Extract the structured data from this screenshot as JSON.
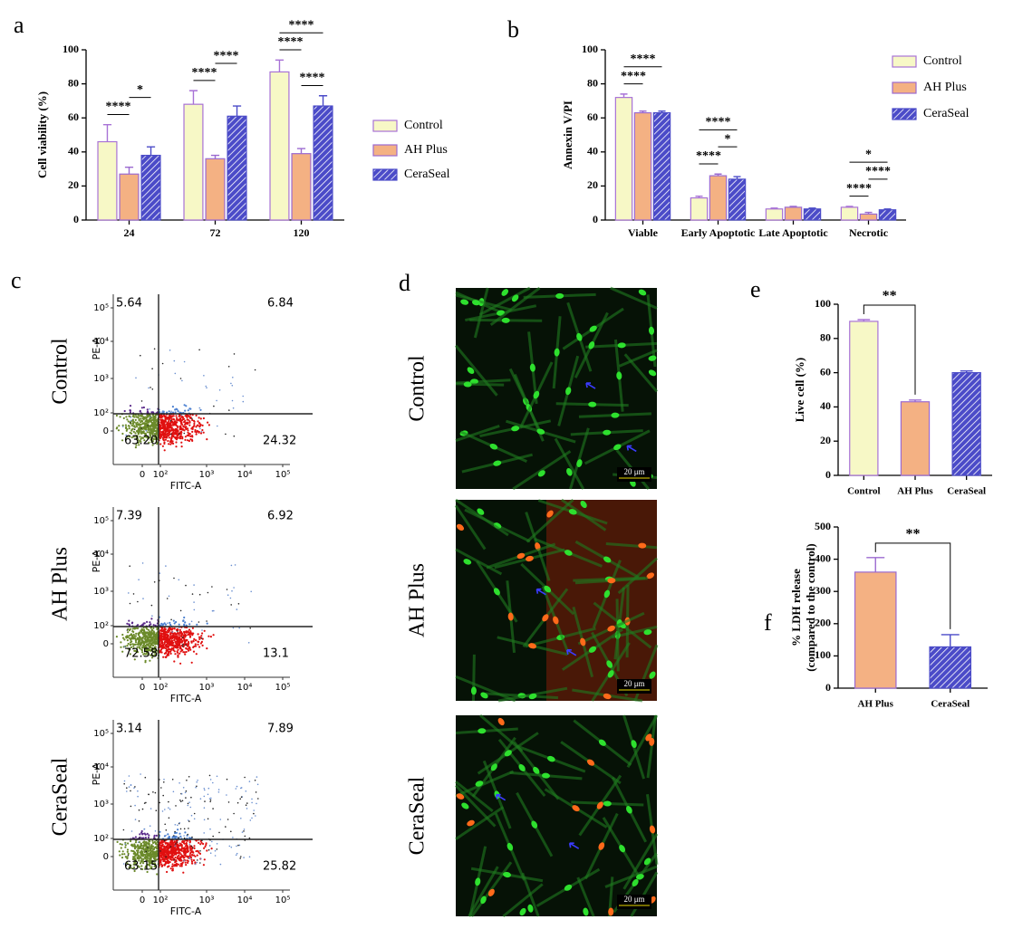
{
  "chart_data": [
    {
      "type": "bar",
      "panel": "a",
      "ylabel": "Cell viability (%)",
      "categories": [
        "24",
        "72",
        "120"
      ],
      "series": [
        {
          "name": "Control",
          "color": "#f7f8c6",
          "edge": "#a872d6",
          "hatch": false,
          "values": [
            46,
            68,
            87
          ],
          "errors": [
            10,
            8,
            7
          ]
        },
        {
          "name": "AH Plus",
          "color": "#f4b183",
          "edge": "#9b6ad0",
          "hatch": false,
          "values": [
            27,
            36,
            39
          ],
          "errors": [
            4,
            2,
            3
          ]
        },
        {
          "name": "CeraSeal",
          "color": "#4b4bc8",
          "edge": "#4b4bc8",
          "hatch": true,
          "values": [
            38,
            61,
            67
          ],
          "errors": [
            5,
            6,
            6
          ]
        }
      ],
      "ylim": [
        0,
        100
      ],
      "yticks": [
        0,
        20,
        40,
        60,
        80,
        100
      ],
      "annotations": [
        {
          "category": 0,
          "from": 0,
          "to": 1,
          "text": "****"
        },
        {
          "category": 0,
          "from": 1,
          "to": 2,
          "text": "*"
        },
        {
          "category": 1,
          "from": 0,
          "to": 1,
          "text": "****"
        },
        {
          "category": 1,
          "from": 1,
          "to": 2,
          "text": "****"
        },
        {
          "category": 2,
          "from": 1,
          "to": 2,
          "text": "****"
        },
        {
          "category": 2,
          "from": 0,
          "to": 1,
          "text": "****"
        },
        {
          "category": 2,
          "from": 0,
          "to": 2,
          "text": "****"
        }
      ]
    },
    {
      "type": "bar",
      "panel": "b",
      "ylabel": "Annexin V/PI",
      "categories": [
        "Viable",
        "Early Apoptotic",
        "Late Apoptotic",
        "Necrotic"
      ],
      "series": [
        {
          "name": "Control",
          "color": "#f7f8c6",
          "edge": "#a872d6",
          "hatch": false,
          "values": [
            72,
            13,
            6.5,
            7.5
          ],
          "errors": [
            2,
            1,
            0.5,
            0.5
          ]
        },
        {
          "name": "AH Plus",
          "color": "#f4b183",
          "edge": "#9b6ad0",
          "hatch": false,
          "values": [
            63,
            26,
            7.5,
            3.5
          ],
          "errors": [
            1,
            1,
            0.5,
            1
          ]
        },
        {
          "name": "CeraSeal",
          "color": "#4b4bc8",
          "edge": "#4b4bc8",
          "hatch": true,
          "values": [
            63,
            24,
            6.5,
            6
          ],
          "errors": [
            1,
            1.5,
            0.5,
            0.5
          ]
        }
      ],
      "ylim": [
        0,
        100
      ],
      "yticks": [
        0,
        20,
        40,
        60,
        80,
        100
      ],
      "annotations": [
        {
          "category": 0,
          "from": 0,
          "to": 1,
          "text": "****"
        },
        {
          "category": 0,
          "from": 0,
          "to": 2,
          "text": "****"
        },
        {
          "category": 1,
          "from": 0,
          "to": 1,
          "text": "****"
        },
        {
          "category": 1,
          "from": 1,
          "to": 2,
          "text": "*"
        },
        {
          "category": 1,
          "from": 0,
          "to": 2,
          "text": "****"
        },
        {
          "category": 3,
          "from": 0,
          "to": 1,
          "text": "****"
        },
        {
          "category": 3,
          "from": 1,
          "to": 2,
          "text": "****"
        },
        {
          "category": 3,
          "from": 0,
          "to": 2,
          "text": "*"
        }
      ]
    },
    {
      "type": "bar",
      "panel": "e",
      "ylabel": "Live cell (%)",
      "categories": [
        "Control",
        "AH Plus",
        "CeraSeal"
      ],
      "values": [
        90,
        43,
        60
      ],
      "errors": [
        1,
        1,
        1
      ],
      "colors": [
        "#f7f8c6",
        "#f4b183",
        "#4b4bc8"
      ],
      "edges": [
        "#a872d6",
        "#9b6ad0",
        "#4b4bc8"
      ],
      "hatch": [
        false,
        false,
        true
      ],
      "ylim": [
        0,
        100
      ],
      "yticks": [
        0,
        20,
        40,
        60,
        80,
        100
      ],
      "annotations": [
        {
          "from": 0,
          "to": 1,
          "text": "**"
        }
      ]
    },
    {
      "type": "bar",
      "panel": "f",
      "ylabel": [
        "% LDH release",
        "(compared to the control)"
      ],
      "categories": [
        "AH Plus",
        "CeraSeal"
      ],
      "values": [
        360,
        128
      ],
      "errors": [
        45,
        38
      ],
      "colors": [
        "#f4b183",
        "#4b4bc8"
      ],
      "edges": [
        "#9b6ad0",
        "#4b4bc8"
      ],
      "hatch": [
        false,
        true
      ],
      "ylim": [
        0,
        500
      ],
      "yticks": [
        0,
        100,
        200,
        300,
        400,
        500
      ],
      "annotations": [
        {
          "from": 0,
          "to": 1,
          "text": "**"
        }
      ]
    }
  ],
  "flow_cytometry": {
    "panel": "c",
    "x_label": "FITC-A",
    "y_label": "PE-A",
    "xtick_labels": [
      "0",
      "10²",
      "10³",
      "10⁴",
      "10⁵"
    ],
    "ytick_labels": [
      "0",
      "10²",
      "10³",
      "10⁴",
      "10⁵"
    ],
    "samples": [
      {
        "name": "Control",
        "quadrants": [
          "5.64",
          "6.84",
          "63.20",
          "24.32"
        ]
      },
      {
        "name": "AH Plus",
        "quadrants": [
          "7.39",
          "6.92",
          "72.58",
          "13.1"
        ]
      },
      {
        "name": "CeraSeal",
        "quadrants": [
          "3.14",
          "7.89",
          "63.15",
          "25.82"
        ]
      }
    ]
  },
  "micrographs": {
    "panel": "d",
    "scale_bar": "20 μm",
    "samples": [
      "Control",
      "AH Plus",
      "CeraSeal"
    ]
  }
}
